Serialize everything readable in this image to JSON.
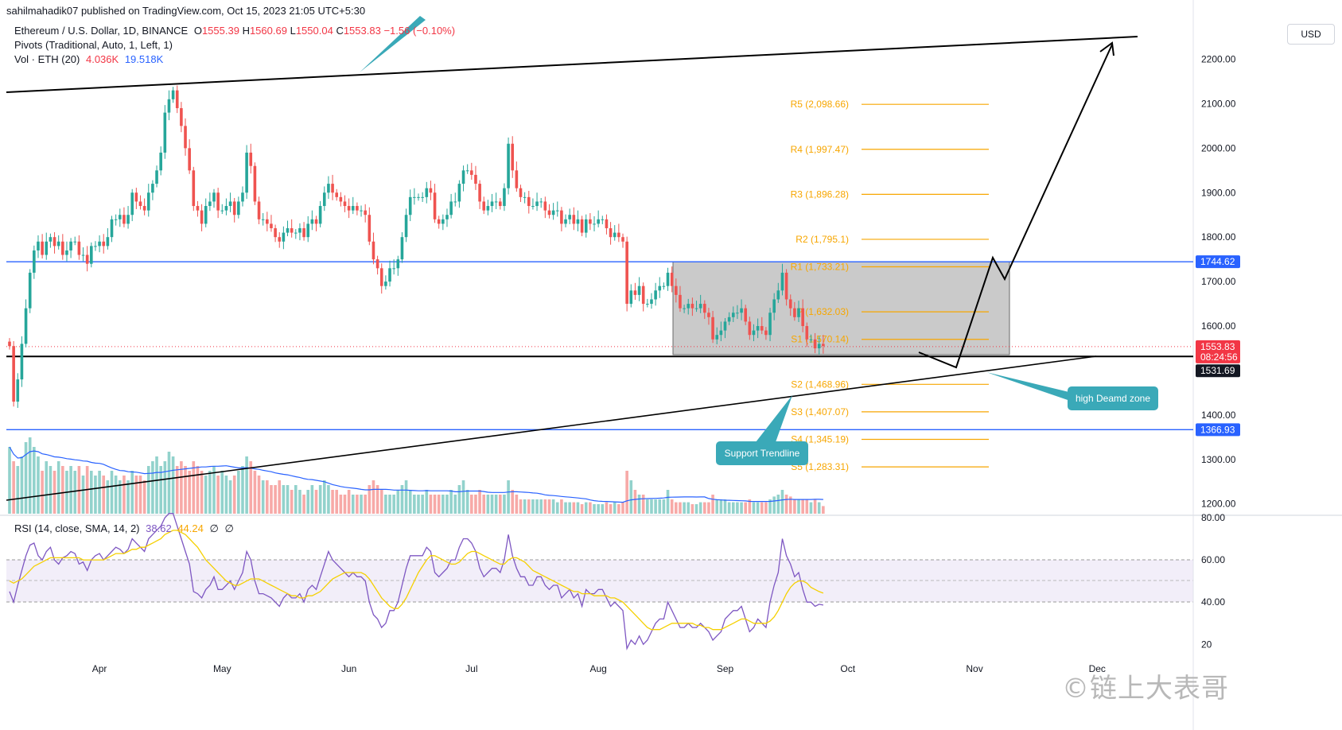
{
  "header": {
    "published": "sahilmahadik07 published on TradingView.com, Oct 15, 2023 21:05 UTC+5:30"
  },
  "legend": {
    "symbol": "Ethereum / U.S. Dollar, 1D, BINANCE",
    "o_label": "O",
    "o": "1555.39",
    "h_label": "H",
    "h": "1560.69",
    "l_label": "L",
    "l": "1550.04",
    "c_label": "C",
    "c": "1553.83",
    "change": "−1.56 (−0.10%)",
    "pivots": "Pivots (Traditional, Auto, 1, Left, 1)",
    "vol": "Vol · ETH (20)",
    "vol_val1": "4.036K",
    "vol_val2": "19.518K",
    "rsi": "RSI (14, close, SMA, 14, 2)",
    "rsi_val1": "38.62",
    "rsi_val2": "44.24",
    "rsi_val3": "∅",
    "rsi_val4": "∅"
  },
  "currency_button": "USD",
  "annotations": {
    "support_trendline": "Support Trendline",
    "demand_zone": "high Deamd zone"
  },
  "watermark": "©链上大表哥",
  "colors": {
    "up": "#26a69a",
    "down": "#ef5350",
    "pivot": "#f7a600",
    "level": "#2962ff",
    "rsi": "#7e57c2",
    "rsi_ma": "#f5d000",
    "vol_ma": "#2962ff",
    "callout": "#3aa9b8"
  },
  "chart_data": {
    "type": "candlestick",
    "xlabels": [
      "Apr",
      "May",
      "Jun",
      "Jul",
      "Aug",
      "Sep",
      "Oct",
      "Nov",
      "Dec"
    ],
    "price_axis": {
      "ticks": [
        "2200.00",
        "2100.00",
        "2000.00",
        "1900.00",
        "1800.00",
        "1700.00",
        "1600.00",
        "1400.00",
        "1300.00",
        "1200.00"
      ],
      "tick_values": [
        2200,
        2100,
        2000,
        1900,
        1800,
        1700,
        1600,
        1400,
        1300,
        1200
      ],
      "labels": [
        {
          "text": "1744.62",
          "value": 1744.62,
          "color": "#2962ff"
        },
        {
          "text": "1553.83",
          "value": 1553.83,
          "color": "#f23645"
        },
        {
          "text": "08:24:56",
          "value": 1553.83,
          "color": "#f23645"
        },
        {
          "text": "1531.69",
          "value": 1531.69,
          "color": "#131722"
        },
        {
          "text": "1366.93",
          "value": 1366.93,
          "color": "#2962ff"
        }
      ]
    },
    "rsi_axis": {
      "ticks": [
        "80.00",
        "60.00",
        "40.00",
        "20"
      ],
      "tick_values": [
        80,
        60,
        40,
        20
      ],
      "band": [
        40,
        60
      ]
    },
    "pivots": [
      {
        "label": "R5 (2,098.66)",
        "value": 2098.66
      },
      {
        "label": "R4 (1,997.47)",
        "value": 1997.47
      },
      {
        "label": "R3 (1,896.28)",
        "value": 1896.28
      },
      {
        "label": "R2 (1,795.1)",
        "value": 1795.1
      },
      {
        "label": "R1 (1,733.21)",
        "value": 1733.21
      },
      {
        "label": "P (1,632.03)",
        "value": 1632.03
      },
      {
        "label": "S1 (1,570.14)",
        "value": 1570.14
      },
      {
        "label": "S2 (1,468.96)",
        "value": 1468.96
      },
      {
        "label": "S3 (1,407.07)",
        "value": 1407.07
      },
      {
        "label": "S4 (1,345.19)",
        "value": 1345.19
      },
      {
        "label": "S5 (1,283.31)",
        "value": 1283.31
      }
    ],
    "levels": [
      1744.62,
      1531.69,
      1366.93
    ],
    "close_series": [
      1555,
      1430,
      1480,
      1560,
      1640,
      1720,
      1770,
      1790,
      1760,
      1790,
      1800,
      1780,
      1790,
      1760,
      1770,
      1790,
      1790,
      1760,
      1760,
      1740,
      1780,
      1780,
      1790,
      1780,
      1800,
      1840,
      1840,
      1850,
      1830,
      1850,
      1900,
      1880,
      1870,
      1860,
      1900,
      1920,
      1950,
      1990,
      2080,
      2110,
      2130,
      2090,
      2050,
      2000,
      1950,
      1870,
      1860,
      1830,
      1870,
      1880,
      1900,
      1860,
      1860,
      1870,
      1880,
      1850,
      1880,
      1900,
      1990,
      1960,
      1880,
      1840,
      1840,
      1830,
      1820,
      1800,
      1790,
      1810,
      1820,
      1810,
      1810,
      1820,
      1800,
      1830,
      1840,
      1830,
      1870,
      1900,
      1920,
      1900,
      1890,
      1880,
      1870,
      1860,
      1870,
      1860,
      1860,
      1850,
      1790,
      1750,
      1730,
      1690,
      1700,
      1730,
      1730,
      1750,
      1800,
      1850,
      1890,
      1890,
      1890,
      1890,
      1910,
      1900,
      1840,
      1830,
      1840,
      1850,
      1880,
      1880,
      1920,
      1950,
      1950,
      1940,
      1920,
      1880,
      1860,
      1870,
      1880,
      1880,
      1870,
      1910,
      2010,
      1950,
      1910,
      1890,
      1890,
      1870,
      1870,
      1880,
      1880,
      1860,
      1850,
      1860,
      1860,
      1830,
      1840,
      1850,
      1830,
      1840,
      1810,
      1840,
      1830,
      1830,
      1840,
      1840,
      1820,
      1800,
      1810,
      1800,
      1790,
      1650,
      1680,
      1670,
      1690,
      1650,
      1650,
      1660,
      1680,
      1690,
      1690,
      1720,
      1690,
      1670,
      1640,
      1640,
      1650,
      1640,
      1640,
      1650,
      1630,
      1620,
      1570,
      1580,
      1590,
      1610,
      1620,
      1630,
      1630,
      1640,
      1610,
      1580,
      1590,
      1600,
      1590,
      1580,
      1630,
      1660,
      1680,
      1720,
      1660,
      1640,
      1620,
      1640,
      1600,
      1570,
      1570,
      1550,
      1560,
      1555
    ],
    "rsi_series": [
      45,
      40,
      48,
      55,
      62,
      67,
      68,
      62,
      60,
      64,
      66,
      60,
      58,
      61,
      62,
      64,
      63,
      58,
      59,
      55,
      60,
      62,
      63,
      60,
      62,
      64,
      66,
      65,
      63,
      65,
      70,
      68,
      66,
      64,
      70,
      72,
      74,
      76,
      80,
      82,
      82,
      76,
      70,
      64,
      58,
      45,
      44,
      42,
      46,
      48,
      52,
      46,
      46,
      48,
      50,
      46,
      50,
      54,
      64,
      60,
      50,
      44,
      44,
      43,
      42,
      40,
      38,
      42,
      44,
      42,
      42,
      44,
      40,
      46,
      48,
      46,
      52,
      58,
      64,
      60,
      58,
      56,
      54,
      52,
      54,
      52,
      52,
      50,
      40,
      34,
      32,
      28,
      30,
      36,
      36,
      40,
      48,
      56,
      62,
      62,
      62,
      62,
      66,
      64,
      54,
      52,
      54,
      56,
      60,
      60,
      66,
      70,
      70,
      68,
      64,
      56,
      52,
      54,
      56,
      56,
      54,
      60,
      72,
      62,
      56,
      52,
      52,
      48,
      48,
      52,
      52,
      48,
      46,
      48,
      48,
      42,
      44,
      46,
      42,
      44,
      38,
      46,
      44,
      44,
      46,
      46,
      42,
      38,
      40,
      38,
      36,
      18,
      22,
      20,
      24,
      20,
      22,
      26,
      30,
      32,
      32,
      40,
      36,
      32,
      28,
      28,
      30,
      28,
      28,
      30,
      28,
      26,
      22,
      24,
      26,
      32,
      34,
      36,
      36,
      38,
      32,
      26,
      28,
      32,
      30,
      28,
      40,
      48,
      54,
      70,
      62,
      58,
      52,
      54,
      46,
      40,
      40,
      38,
      39,
      38.62
    ],
    "rsi_ma_series": [
      50,
      49,
      50,
      51,
      53,
      55,
      57,
      58,
      59,
      60,
      61,
      61,
      61,
      61,
      61,
      61,
      61,
      61,
      60,
      60,
      60,
      60,
      60,
      60,
      61,
      62,
      63,
      63,
      63,
      64,
      65,
      65,
      66,
      66,
      67,
      68,
      69,
      70,
      72,
      73,
      74,
      74,
      73,
      72,
      70,
      68,
      66,
      63,
      60,
      58,
      56,
      54,
      52,
      50,
      49,
      48,
      48,
      49,
      50,
      51,
      51,
      51,
      50,
      49,
      48,
      47,
      46,
      45,
      44,
      43,
      43,
      42,
      42,
      43,
      43,
      44,
      45,
      47,
      49,
      51,
      52,
      53,
      54,
      54,
      54,
      54,
      54,
      53,
      51,
      48,
      45,
      42,
      40,
      38,
      37,
      37,
      39,
      42,
      46,
      50,
      54,
      57,
      60,
      62,
      62,
      61,
      60,
      59,
      58,
      58,
      59,
      61,
      63,
      64,
      64,
      63,
      62,
      61,
      60,
      59,
      58,
      58,
      60,
      61,
      61,
      60,
      59,
      57,
      55,
      54,
      53,
      52,
      51,
      50,
      49,
      48,
      47,
      46,
      45,
      45,
      44,
      44,
      44,
      43,
      43,
      43,
      43,
      42,
      42,
      41,
      40,
      38,
      36,
      34,
      32,
      30,
      28,
      27,
      27,
      27,
      28,
      29,
      30,
      30,
      30,
      30,
      30,
      30,
      29,
      29,
      28,
      28,
      27,
      27,
      27,
      28,
      29,
      30,
      31,
      32,
      32,
      31,
      30,
      30,
      30,
      30,
      31,
      33,
      36,
      40,
      44,
      47,
      49,
      50,
      50,
      49,
      47,
      46,
      45,
      44.24
    ],
    "volume_series": [
      0.7,
      0.55,
      0.5,
      0.6,
      0.75,
      0.8,
      0.7,
      0.6,
      0.45,
      0.55,
      0.5,
      0.45,
      0.55,
      0.5,
      0.45,
      0.5,
      0.45,
      0.5,
      0.4,
      0.5,
      0.45,
      0.4,
      0.45,
      0.4,
      0.35,
      0.45,
      0.4,
      0.35,
      0.4,
      0.35,
      0.45,
      0.4,
      0.4,
      0.35,
      0.5,
      0.55,
      0.6,
      0.5,
      0.55,
      0.65,
      0.6,
      0.5,
      0.55,
      0.5,
      0.45,
      0.55,
      0.5,
      0.45,
      0.4,
      0.45,
      0.5,
      0.4,
      0.45,
      0.4,
      0.35,
      0.4,
      0.45,
      0.5,
      0.6,
      0.55,
      0.45,
      0.4,
      0.35,
      0.35,
      0.3,
      0.3,
      0.35,
      0.3,
      0.3,
      0.25,
      0.3,
      0.25,
      0.2,
      0.25,
      0.3,
      0.25,
      0.3,
      0.35,
      0.3,
      0.25,
      0.25,
      0.2,
      0.2,
      0.25,
      0.2,
      0.2,
      0.2,
      0.2,
      0.3,
      0.35,
      0.3,
      0.25,
      0.2,
      0.2,
      0.2,
      0.25,
      0.3,
      0.35,
      0.25,
      0.2,
      0.2,
      0.2,
      0.25,
      0.2,
      0.2,
      0.2,
      0.2,
      0.2,
      0.25,
      0.2,
      0.3,
      0.35,
      0.25,
      0.2,
      0.2,
      0.25,
      0.2,
      0.2,
      0.2,
      0.2,
      0.2,
      0.2,
      0.35,
      0.25,
      0.2,
      0.15,
      0.15,
      0.15,
      0.15,
      0.15,
      0.15,
      0.15,
      0.15,
      0.15,
      0.12,
      0.15,
      0.12,
      0.12,
      0.12,
      0.12,
      0.1,
      0.12,
      0.12,
      0.1,
      0.1,
      0.1,
      0.12,
      0.1,
      0.12,
      0.1,
      0.12,
      0.45,
      0.35,
      0.25,
      0.2,
      0.2,
      0.15,
      0.15,
      0.15,
      0.15,
      0.15,
      0.25,
      0.15,
      0.12,
      0.12,
      0.12,
      0.12,
      0.1,
      0.1,
      0.12,
      0.12,
      0.12,
      0.2,
      0.15,
      0.15,
      0.15,
      0.12,
      0.12,
      0.12,
      0.12,
      0.12,
      0.15,
      0.12,
      0.12,
      0.12,
      0.12,
      0.15,
      0.18,
      0.2,
      0.25,
      0.2,
      0.18,
      0.15,
      0.15,
      0.15,
      0.15,
      0.12,
      0.15,
      0.12,
      0.08
    ]
  }
}
